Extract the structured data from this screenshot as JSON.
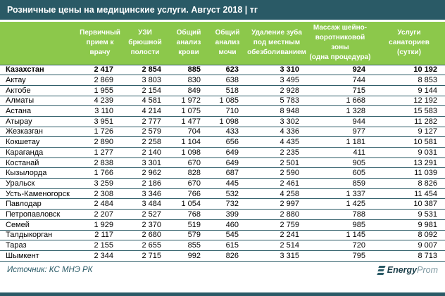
{
  "page": {
    "title": "Розничные цены на медицинские услуги. Август 2018 | тг"
  },
  "chart_data": {
    "type": "table",
    "title": "Розничные цены на медицинские услуги. Август 2018 | тг",
    "unit": "тг",
    "columns": [
      {
        "label": "Первичный прием к врачу",
        "wrapped": "Первичный\nприем к\nврачу"
      },
      {
        "label": "УЗИ брюшной полости",
        "wrapped": "УЗИ\nбрюшной\nполости"
      },
      {
        "label": "Общий анализ крови",
        "wrapped": "Общий\nанализ\nкрови"
      },
      {
        "label": "Общий анализ мочи",
        "wrapped": "Общий\nанализ\nмочи"
      },
      {
        "label": "Удаление зуба под местным обезболиванием",
        "wrapped": "Удаление зуба\nпод местным\nобезболиванием"
      },
      {
        "label": "Массаж шейно-воротниковой зоны (одна процедура)",
        "wrapped": "Массаж шейно-\nворотниковой зоны\n(одна процедура)"
      },
      {
        "label": "Услуги санаториев (сутки)",
        "wrapped": "Услуги\nсанаториев\n(сутки)"
      }
    ],
    "rows": [
      {
        "name": "Казахстан",
        "bold": true,
        "values": [
          2417,
          2854,
          885,
          623,
          3310,
          924,
          10192
        ]
      },
      {
        "name": "Актау",
        "bold": false,
        "values": [
          2869,
          3803,
          830,
          638,
          3495,
          744,
          8853
        ]
      },
      {
        "name": "Актобе",
        "bold": false,
        "values": [
          1955,
          2154,
          849,
          518,
          2928,
          715,
          9144
        ]
      },
      {
        "name": "Алматы",
        "bold": false,
        "values": [
          4239,
          4581,
          1972,
          1085,
          5783,
          1668,
          12192
        ]
      },
      {
        "name": "Астана",
        "bold": false,
        "values": [
          3110,
          4214,
          1075,
          710,
          8948,
          1328,
          15583
        ]
      },
      {
        "name": "Атырау",
        "bold": false,
        "values": [
          3951,
          2777,
          1477,
          1098,
          3302,
          944,
          11282
        ]
      },
      {
        "name": "Жезказган",
        "bold": false,
        "values": [
          1726,
          2579,
          704,
          433,
          4336,
          977,
          9127
        ]
      },
      {
        "name": "Кокшетау",
        "bold": false,
        "values": [
          2890,
          2258,
          1104,
          656,
          4435,
          1181,
          10581
        ]
      },
      {
        "name": "Караганда",
        "bold": false,
        "values": [
          1277,
          2140,
          1098,
          649,
          2235,
          411,
          9031
        ]
      },
      {
        "name": "Костанай",
        "bold": false,
        "values": [
          2838,
          3301,
          670,
          649,
          2501,
          905,
          13291
        ]
      },
      {
        "name": "Кызылорда",
        "bold": false,
        "values": [
          1766,
          2962,
          828,
          687,
          2590,
          605,
          11039
        ]
      },
      {
        "name": "Уральск",
        "bold": false,
        "values": [
          3259,
          2186,
          670,
          445,
          2461,
          859,
          8826
        ]
      },
      {
        "name": "Усть-Каменогорск",
        "bold": false,
        "values": [
          2308,
          3346,
          766,
          532,
          4258,
          1337,
          11454
        ]
      },
      {
        "name": "Павлодар",
        "bold": false,
        "values": [
          2484,
          3484,
          1054,
          732,
          2997,
          1425,
          10387
        ]
      },
      {
        "name": "Петропавловск",
        "bold": false,
        "values": [
          2207,
          2527,
          768,
          399,
          2880,
          788,
          9531
        ]
      },
      {
        "name": "Семей",
        "bold": false,
        "values": [
          1929,
          2370,
          519,
          460,
          2759,
          985,
          9981
        ]
      },
      {
        "name": "Талдыкорган",
        "bold": false,
        "values": [
          2117,
          2680,
          579,
          545,
          2241,
          1145,
          8092
        ]
      },
      {
        "name": "Тараз",
        "bold": false,
        "values": [
          2155,
          2655,
          855,
          615,
          2514,
          720,
          9007
        ]
      },
      {
        "name": "Шымкент",
        "bold": false,
        "values": [
          2344,
          2715,
          992,
          826,
          3315,
          795,
          8713
        ]
      }
    ]
  },
  "footer": {
    "source": "Источник: КС МНЭ РК",
    "logo": {
      "name": "EnergyProm",
      "bold_part": "Energy",
      "light_part": "Prom"
    }
  },
  "colors": {
    "teal": "#2A5A66",
    "green": "#8CC84B",
    "logo_dark": "#1C3F4A",
    "logo_light": "#7D98A1"
  }
}
